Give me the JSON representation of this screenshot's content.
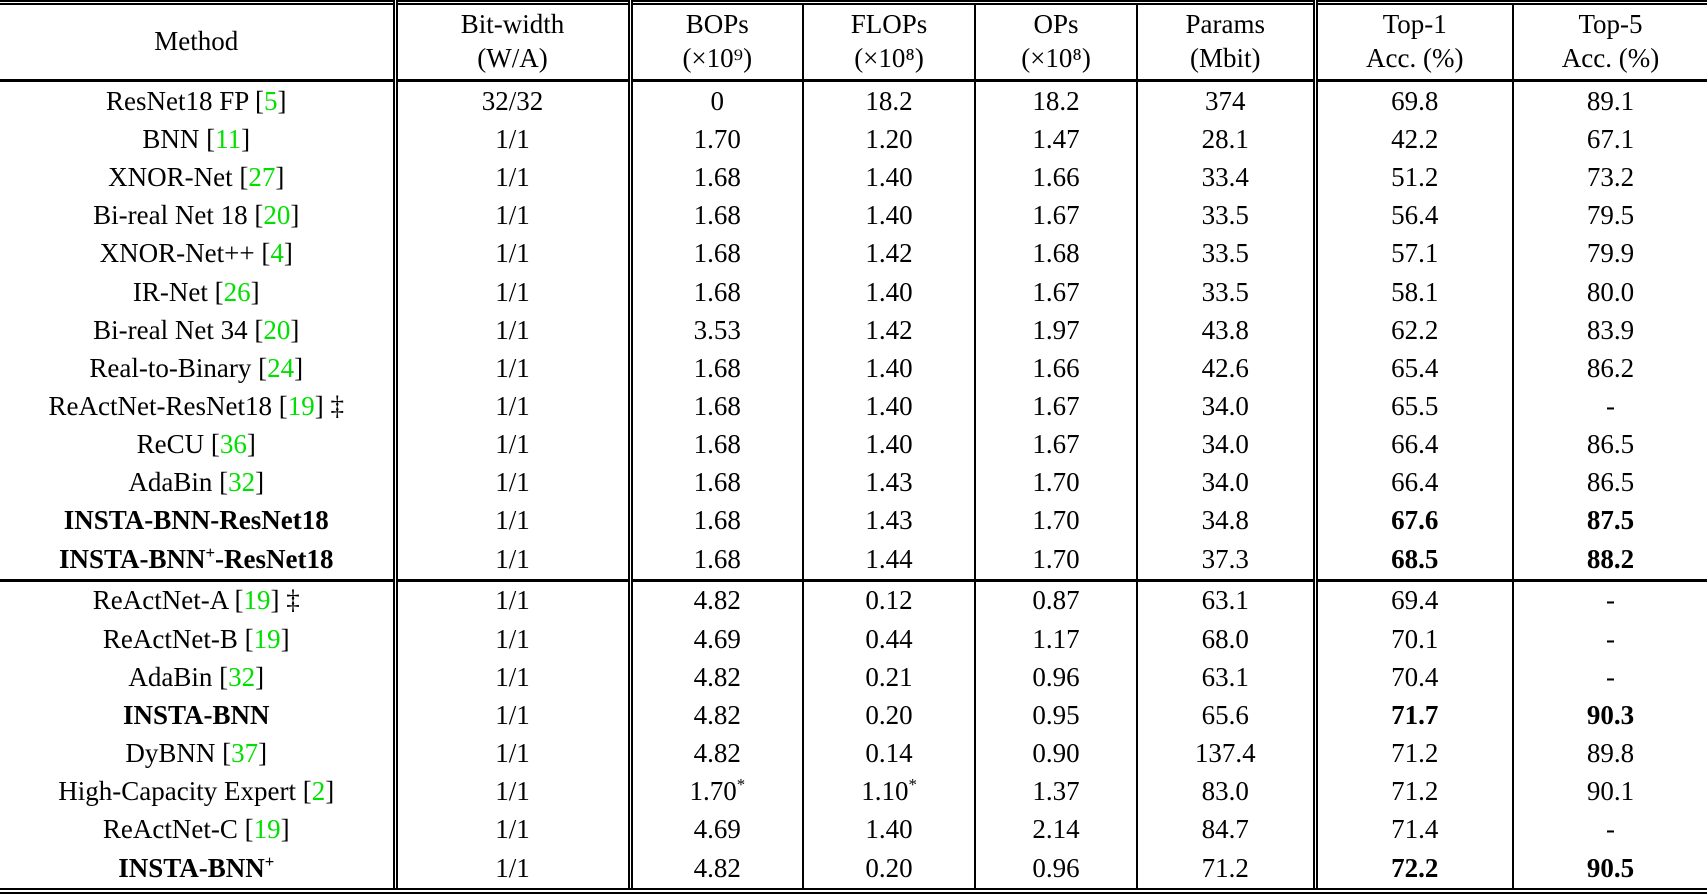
{
  "table": {
    "citation_color": "#00e000",
    "headers": [
      {
        "line1": "Method",
        "line2": ""
      },
      {
        "line1": "Bit-width",
        "line2": "(W/A)"
      },
      {
        "line1": "BOPs",
        "line2": "(×10⁹)"
      },
      {
        "line1": "FLOPs",
        "line2": "(×10⁸)"
      },
      {
        "line1": "OPs",
        "line2": "(×10⁸)"
      },
      {
        "line1": "Params",
        "line2": "(Mbit)"
      },
      {
        "line1": "Top-1",
        "line2": "Acc. (%)"
      },
      {
        "line1": "Top-5",
        "line2": "Acc. (%)"
      }
    ],
    "dagger_symbol": "‡",
    "sections": [
      {
        "rows": [
          {
            "method": {
              "pre": "ResNet18 FP",
              "cite": "5"
            },
            "values": [
              "32/32",
              "0",
              "18.2",
              "18.2",
              "374",
              "69.8",
              "89.1"
            ]
          },
          {
            "method": {
              "pre": "BNN",
              "cite": "11"
            },
            "values": [
              "1/1",
              "1.70",
              "1.20",
              "1.47",
              "28.1",
              "42.2",
              "67.1"
            ]
          },
          {
            "method": {
              "pre": "XNOR-Net",
              "cite": "27"
            },
            "values": [
              "1/1",
              "1.68",
              "1.40",
              "1.66",
              "33.4",
              "51.2",
              "73.2"
            ]
          },
          {
            "method": {
              "pre": "Bi-real Net 18",
              "cite": "20"
            },
            "values": [
              "1/1",
              "1.68",
              "1.40",
              "1.67",
              "33.5",
              "56.4",
              "79.5"
            ]
          },
          {
            "method": {
              "pre": "XNOR-Net++",
              "cite": "4"
            },
            "values": [
              "1/1",
              "1.68",
              "1.42",
              "1.68",
              "33.5",
              "57.1",
              "79.9"
            ]
          },
          {
            "method": {
              "pre": "IR-Net",
              "cite": "26"
            },
            "values": [
              "1/1",
              "1.68",
              "1.40",
              "1.67",
              "33.5",
              "58.1",
              "80.0"
            ]
          },
          {
            "method": {
              "pre": "Bi-real Net 34",
              "cite": "20"
            },
            "values": [
              "1/1",
              "3.53",
              "1.42",
              "1.97",
              "43.8",
              "62.2",
              "83.9"
            ]
          },
          {
            "method": {
              "pre": "Real-to-Binary",
              "cite": "24"
            },
            "values": [
              "1/1",
              "1.68",
              "1.40",
              "1.66",
              "42.6",
              "65.4",
              "86.2"
            ]
          },
          {
            "method": {
              "pre": "ReActNet-ResNet18",
              "cite": "19",
              "dagger": true
            },
            "values": [
              "1/1",
              "1.68",
              "1.40",
              "1.67",
              "34.0",
              "65.5",
              "-"
            ]
          },
          {
            "method": {
              "pre": "ReCU",
              "cite": "36"
            },
            "values": [
              "1/1",
              "1.68",
              "1.40",
              "1.67",
              "34.0",
              "66.4",
              "86.5"
            ]
          },
          {
            "method": {
              "pre": "AdaBin",
              "cite": "32"
            },
            "values": [
              "1/1",
              "1.68",
              "1.43",
              "1.70",
              "34.0",
              "66.4",
              "86.5"
            ]
          },
          {
            "method": {
              "pre": "INSTA-BNN-ResNet18",
              "bold": true
            },
            "values": [
              "1/1",
              "1.68",
              "1.43",
              "1.70",
              "34.8",
              "67.6",
              "87.5"
            ],
            "bold_acc": true
          },
          {
            "method": {
              "pre": "INSTA-BNN",
              "sup": "+",
              "post": "-ResNet18",
              "bold": true
            },
            "values": [
              "1/1",
              "1.68",
              "1.44",
              "1.70",
              "37.3",
              "68.5",
              "88.2"
            ],
            "bold_acc": true
          }
        ]
      },
      {
        "rows": [
          {
            "method": {
              "pre": "ReActNet-A",
              "cite": "19",
              "dagger": true
            },
            "values": [
              "1/1",
              "4.82",
              "0.12",
              "0.87",
              "63.1",
              "69.4",
              "-"
            ]
          },
          {
            "method": {
              "pre": "ReActNet-B",
              "cite": "19"
            },
            "values": [
              "1/1",
              "4.69",
              "0.44",
              "1.17",
              "68.0",
              "70.1",
              "-"
            ]
          },
          {
            "method": {
              "pre": "AdaBin",
              "cite": "32"
            },
            "values": [
              "1/1",
              "4.82",
              "0.21",
              "0.96",
              "63.1",
              "70.4",
              "-"
            ]
          },
          {
            "method": {
              "pre": "INSTA-BNN",
              "bold": true
            },
            "values": [
              "1/1",
              "4.82",
              "0.20",
              "0.95",
              "65.6",
              "71.7",
              "90.3"
            ],
            "bold_acc": true
          },
          {
            "method": {
              "pre": "DyBNN",
              "cite": "37"
            },
            "values": [
              "1/1",
              "4.82",
              "0.14",
              "0.90",
              "137.4",
              "71.2",
              "89.8"
            ]
          },
          {
            "method": {
              "pre": "High-Capacity Expert",
              "cite": "2"
            },
            "values": [
              "1/1",
              "1.70*",
              "1.10*",
              "1.37",
              "83.0",
              "71.2",
              "90.1"
            ]
          },
          {
            "method": {
              "pre": "ReActNet-C",
              "cite": "19"
            },
            "values": [
              "1/1",
              "4.69",
              "1.40",
              "2.14",
              "84.7",
              "71.4",
              "-"
            ]
          },
          {
            "method": {
              "pre": "INSTA-BNN",
              "sup": "+",
              "bold": true
            },
            "values": [
              "1/1",
              "4.82",
              "0.20",
              "0.96",
              "71.2",
              "72.2",
              "90.5"
            ],
            "bold_acc": true
          }
        ]
      }
    ]
  }
}
